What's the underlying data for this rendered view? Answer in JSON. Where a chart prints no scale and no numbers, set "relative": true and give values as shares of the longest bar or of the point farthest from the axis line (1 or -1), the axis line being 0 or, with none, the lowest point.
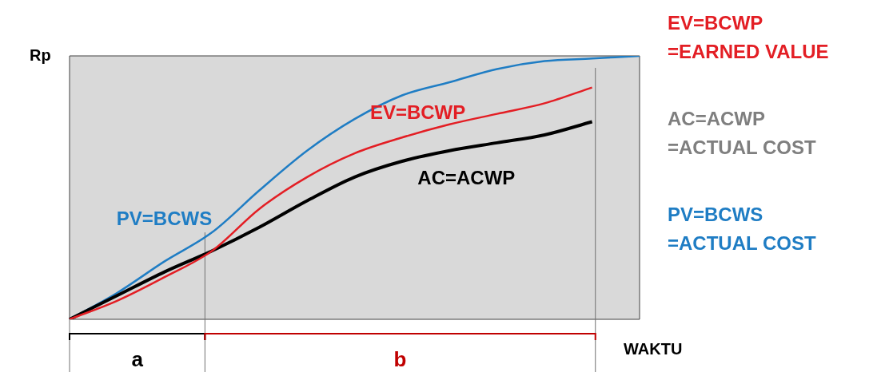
{
  "chart_data": {
    "type": "line",
    "relative": true,
    "ylabel": "Rp",
    "xlabel": "WAKTU",
    "categories": [
      null,
      null,
      null,
      null,
      null,
      null,
      null,
      null,
      null,
      null,
      null,
      null,
      null
    ],
    "series": [
      {
        "name": "EV=BCWP",
        "color": "#e31e24",
        "values": [
          0,
          0.07,
          0.16,
          0.26,
          0.42,
          0.54,
          0.63,
          0.69,
          0.74,
          0.78,
          0.82,
          0.88,
          null
        ]
      },
      {
        "name": "AC=ACWP",
        "color": "#000000",
        "values": [
          0,
          0.09,
          0.18,
          0.26,
          0.35,
          0.45,
          0.54,
          0.6,
          0.64,
          0.67,
          0.7,
          0.75,
          null
        ]
      },
      {
        "name": "PV=BCWS",
        "color": "#1f7dc4",
        "values": [
          0,
          0.1,
          0.22,
          0.33,
          0.49,
          0.64,
          0.76,
          0.85,
          0.9,
          0.95,
          0.98,
          0.99,
          1
        ]
      }
    ],
    "annotations": [
      "EV=BCWP\n=EARNED VALUE",
      "AC=ACWP\n=ACTUAL COST",
      "PV=BCWS\n=ACTUAL COST",
      "a",
      "b"
    ]
  }
}
